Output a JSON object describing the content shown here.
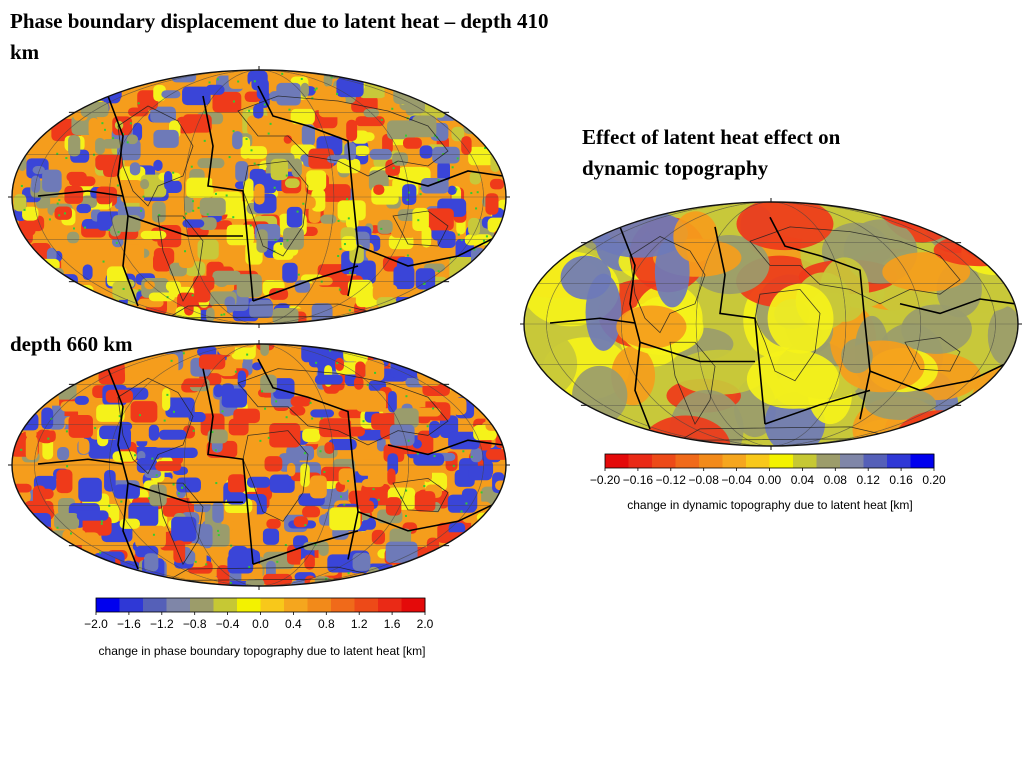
{
  "titles": {
    "depth410": "Phase boundary displacement due to latent heat – depth 410 km",
    "depth660": "depth 660 km",
    "topography": "Effect of latent heat effect on dynamic topography"
  },
  "palette": {
    "ocean_bg": "#f59d1c",
    "blue": "#3a45d8",
    "slate": "#6e7ab8",
    "olive": "#9a9c6c",
    "yellowgreen": "#c8c83a",
    "yellow": "#f5f21a",
    "orange": "#f59d1c",
    "red": "#ef3a1a",
    "green_speck": "#33cc33",
    "outline": "#111111"
  },
  "colorbars": {
    "phase": {
      "ticks": [
        "−2.0",
        "−1.6",
        "−1.2",
        "−0.8",
        "−0.4",
        "0.0",
        "0.4",
        "0.8",
        "1.2",
        "1.6",
        "2.0"
      ],
      "label": "change in phase boundary topography due to latent heat [km]",
      "colors": [
        "#0000ee",
        "#2f38d6",
        "#5560b8",
        "#7f86a8",
        "#9c9c6a",
        "#c6c834",
        "#f3f200",
        "#f8c81a",
        "#f5a61e",
        "#f28a1a",
        "#f06a1a",
        "#ed4a18",
        "#ea2a16",
        "#e40a0a"
      ]
    },
    "dynamic": {
      "ticks": [
        "−0.20",
        "−0.16",
        "−0.12",
        "−0.08",
        "−0.04",
        "0.00",
        "0.04",
        "0.08",
        "0.12",
        "0.16",
        "0.20"
      ],
      "label": "change in dynamic topography due to latent heat [km]",
      "colors": [
        "#e40a0a",
        "#ea2a16",
        "#ed4a18",
        "#f06a1a",
        "#f28a1a",
        "#f5a61e",
        "#f8c81a",
        "#f3f200",
        "#c6c834",
        "#9c9c6a",
        "#7f86a8",
        "#5560b8",
        "#2f38d6",
        "#0000ee"
      ]
    }
  }
}
